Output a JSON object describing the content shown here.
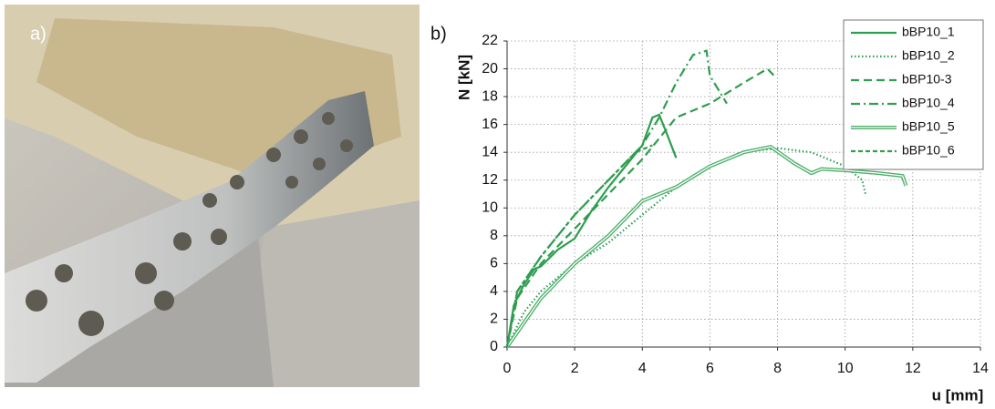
{
  "panel_labels": [
    "a)",
    "b)"
  ],
  "chart_data": {
    "type": "line",
    "x_label": "u [mm]",
    "y_label": "N [kN]",
    "xlim": [
      0,
      14
    ],
    "xticks": [
      0,
      2,
      4,
      6,
      8,
      10,
      12,
      14
    ],
    "ylim": [
      0,
      22
    ],
    "yticks": [
      0,
      2,
      4,
      6,
      8,
      10,
      12,
      14,
      16,
      18,
      20,
      22
    ],
    "grid": true,
    "legend": "upper right",
    "series": [
      {
        "name": "bBP10_1",
        "color": "#2e9e4f",
        "style": "solid",
        "x": [
          0,
          0.2,
          0.5,
          0.8,
          1,
          1.5,
          2,
          2.5,
          3,
          3.5,
          4,
          4.3,
          4.5,
          4.7,
          5
        ],
        "values": [
          0,
          3,
          4.5,
          5.6,
          5.8,
          7,
          7.8,
          9.8,
          11.5,
          13,
          14.5,
          16.5,
          16.7,
          15.5,
          13.6
        ]
      },
      {
        "name": "bBP10_2",
        "color": "#2e9e4f",
        "style": "dotted",
        "x": [
          0,
          0.5,
          1,
          1.5,
          2,
          3,
          4,
          5,
          6,
          7,
          8,
          9,
          9.5,
          10,
          10.5,
          10.6
        ],
        "values": [
          0,
          2.5,
          4,
          5,
          6,
          7.5,
          9.5,
          11.5,
          13,
          14,
          14.3,
          14,
          13.5,
          13,
          12,
          11
        ]
      },
      {
        "name": "bBP10-3",
        "color": "#2e9e4f",
        "style": "dashed",
        "x": [
          0,
          0.3,
          1,
          2,
          3,
          4,
          4.5,
          5,
          6,
          7,
          7.7,
          7.9
        ],
        "values": [
          0,
          3.5,
          6,
          8.5,
          11,
          13.5,
          15,
          16.5,
          17.5,
          19,
          20,
          19.5
        ]
      },
      {
        "name": "bBP10_4",
        "color": "#2e9e4f",
        "style": "dashdot",
        "x": [
          0,
          0.3,
          1,
          2,
          3,
          4,
          4.5,
          5,
          5.5,
          5.9,
          6,
          6.5
        ],
        "values": [
          0,
          4,
          6.5,
          9.5,
          12,
          14.5,
          16.5,
          19,
          21,
          21.3,
          19.5,
          17.5
        ]
      },
      {
        "name": "bBP10_5",
        "color": "#4caf6a",
        "style": "double",
        "x": [
          0,
          1,
          2,
          3,
          4,
          4.5,
          5,
          6,
          7,
          7.8,
          8.5,
          9,
          9.3,
          10,
          11,
          11.7,
          11.8
        ],
        "values": [
          0,
          3.5,
          6,
          8,
          10.5,
          11,
          11.5,
          13,
          14,
          14.4,
          13.2,
          12.5,
          12.8,
          12.7,
          12.5,
          12.3,
          11.6
        ]
      },
      {
        "name": "bBP10_6",
        "color": "#2e9e4f",
        "style": "shortdash",
        "x": [
          0,
          0.3,
          1,
          2,
          3,
          3.8,
          4.3
        ],
        "values": [
          0,
          4,
          6.5,
          9.5,
          12,
          14,
          14.5
        ]
      }
    ]
  }
}
